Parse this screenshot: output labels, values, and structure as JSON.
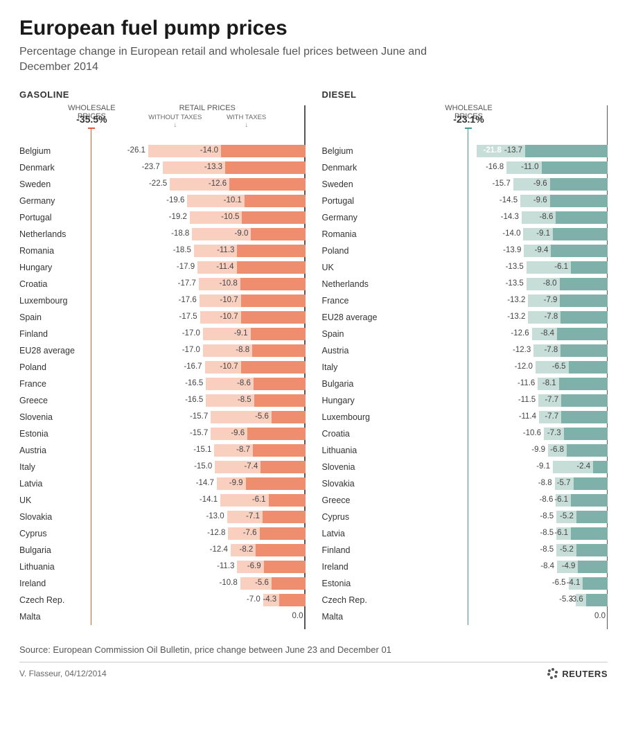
{
  "title": "European fuel pump prices",
  "subtitle": "Percentage change in European retail and wholesale fuel prices between June and December 2014",
  "source": "Source: European Commission Oil Bulletin, price change between June 23 and December 01",
  "credit": "V. Flasseur, 04/12/2014",
  "brand": "REUTERS",
  "header_labels": {
    "wholesale": "WHOLESALE PRICES",
    "retail": "RETAIL PRICES",
    "without_taxes": "WITHOUT TAXES",
    "with_taxes": "WITH TAXES"
  },
  "axis": {
    "min": -36,
    "max": 0
  },
  "panels": [
    {
      "title": "GASOLINE",
      "wholesale": "-35.5%",
      "wholesale_value": -35.5,
      "colors": {
        "bar_dark": "#ef8e6e",
        "bar_light": "#f9cfbf",
        "accent": "#e05a33",
        "first_label": "#444444"
      },
      "show_retail_sublabels": true,
      "rows": [
        {
          "country": "Belgium",
          "without": -26.1,
          "with": -14.0
        },
        {
          "country": "Denmark",
          "without": -23.7,
          "with": -13.3
        },
        {
          "country": "Sweden",
          "without": -22.5,
          "with": -12.6
        },
        {
          "country": "Germany",
          "without": -19.6,
          "with": -10.1
        },
        {
          "country": "Portugal",
          "without": -19.2,
          "with": -10.5
        },
        {
          "country": "Netherlands",
          "without": -18.8,
          "with": -9.0
        },
        {
          "country": "Romania",
          "without": -18.5,
          "with": -11.3
        },
        {
          "country": "Hungary",
          "without": -17.9,
          "with": -11.4
        },
        {
          "country": "Croatia",
          "without": -17.7,
          "with": -10.8
        },
        {
          "country": "Luxembourg",
          "without": -17.6,
          "with": -10.7
        },
        {
          "country": "Spain",
          "without": -17.5,
          "with": -10.7
        },
        {
          "country": "Finland",
          "without": -17.0,
          "with": -9.1
        },
        {
          "country": "EU28 average",
          "without": -17.0,
          "with": -8.8
        },
        {
          "country": "Poland",
          "without": -16.7,
          "with": -10.7
        },
        {
          "country": "France",
          "without": -16.5,
          "with": -8.6
        },
        {
          "country": "Greece",
          "without": -16.5,
          "with": -8.5
        },
        {
          "country": "Slovenia",
          "without": -15.7,
          "with": -5.6
        },
        {
          "country": "Estonia",
          "without": -15.7,
          "with": -9.6
        },
        {
          "country": "Austria",
          "without": -15.1,
          "with": -8.7
        },
        {
          "country": "Italy",
          "without": -15.0,
          "with": -7.4
        },
        {
          "country": "Latvia",
          "without": -14.7,
          "with": -9.9
        },
        {
          "country": "UK",
          "without": -14.1,
          "with": -6.1
        },
        {
          "country": "Slovakia",
          "without": -13.0,
          "with": -7.1
        },
        {
          "country": "Cyprus",
          "without": -12.8,
          "with": -7.6
        },
        {
          "country": "Bulgaria",
          "without": -12.4,
          "with": -8.2
        },
        {
          "country": "Lithuania",
          "without": -11.3,
          "with": -6.9
        },
        {
          "country": "Ireland",
          "without": -10.8,
          "with": -5.6
        },
        {
          "country": "Czech Rep.",
          "without": -7.0,
          "with": -4.3
        },
        {
          "country": "Malta",
          "without": 0.0,
          "with": 0.0,
          "zero": true
        }
      ]
    },
    {
      "title": "DIESEL",
      "wholesale": "-23.1%",
      "wholesale_value": -23.1,
      "colors": {
        "bar_dark": "#7fb0a9",
        "bar_light": "#c7ddd8",
        "accent": "#3a9b8e",
        "first_label": "#ffffff"
      },
      "show_retail_sublabels": false,
      "rows": [
        {
          "country": "Belgium",
          "without": -21.8,
          "with": -13.7,
          "highlight": true
        },
        {
          "country": "Denmark",
          "without": -16.8,
          "with": -11.0
        },
        {
          "country": "Sweden",
          "without": -15.7,
          "with": -9.6
        },
        {
          "country": "Portugal",
          "without": -14.5,
          "with": -9.6
        },
        {
          "country": "Germany",
          "without": -14.3,
          "with": -8.6
        },
        {
          "country": "Romania",
          "without": -14.0,
          "with": -9.1
        },
        {
          "country": "Poland",
          "without": -13.9,
          "with": -9.4
        },
        {
          "country": "UK",
          "without": -13.5,
          "with": -6.1
        },
        {
          "country": "Netherlands",
          "without": -13.5,
          "with": -8.0
        },
        {
          "country": "France",
          "without": -13.2,
          "with": -7.9
        },
        {
          "country": "EU28 average",
          "without": -13.2,
          "with": -7.8
        },
        {
          "country": "Spain",
          "without": -12.6,
          "with": -8.4
        },
        {
          "country": "Austria",
          "without": -12.3,
          "with": -7.8
        },
        {
          "country": "Italy",
          "without": -12.0,
          "with": -6.5
        },
        {
          "country": "Bulgaria",
          "without": -11.6,
          "with": -8.1
        },
        {
          "country": "Hungary",
          "without": -11.5,
          "with": -7.7
        },
        {
          "country": "Luxembourg",
          "without": -11.4,
          "with": -7.7
        },
        {
          "country": "Croatia",
          "without": -10.6,
          "with": -7.3
        },
        {
          "country": "Lithuania",
          "without": -9.9,
          "with": -6.8
        },
        {
          "country": "Slovenia",
          "without": -9.1,
          "with": -2.4
        },
        {
          "country": "Slovakia",
          "without": -8.8,
          "with": -5.7
        },
        {
          "country": "Greece",
          "without": -8.6,
          "with": -6.1
        },
        {
          "country": "Cyprus",
          "without": -8.5,
          "with": -5.2
        },
        {
          "country": "Latvia",
          "without": -8.5,
          "with": -6.1
        },
        {
          "country": "Finland",
          "without": -8.5,
          "with": -5.2
        },
        {
          "country": "Ireland",
          "without": -8.4,
          "with": -4.9
        },
        {
          "country": "Estonia",
          "without": -6.5,
          "with": -4.1
        },
        {
          "country": "Czech Rep.",
          "without": -5.3,
          "with": -3.6
        },
        {
          "country": "Malta",
          "without": 0.0,
          "with": 0.0,
          "zero": true
        }
      ]
    }
  ]
}
